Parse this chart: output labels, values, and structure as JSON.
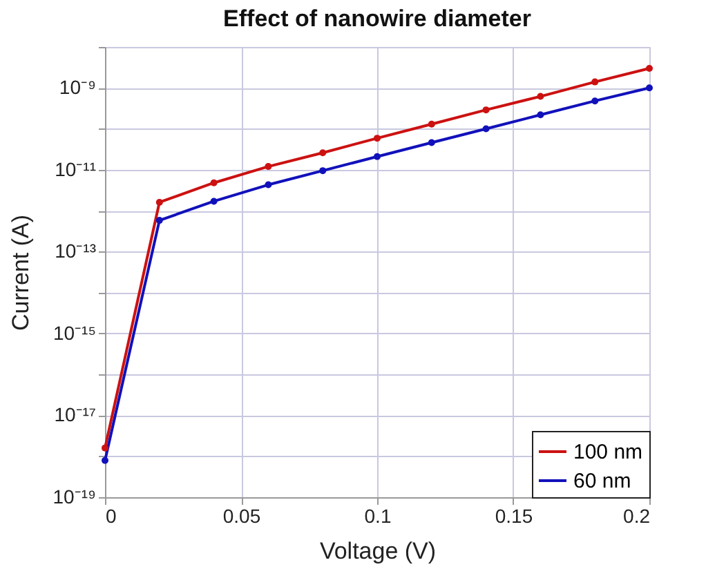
{
  "chart_data": {
    "type": "line",
    "title": "Effect of nanowire diameter",
    "xlabel": "Voltage (V)",
    "ylabel": "Current (A)",
    "x": [
      0,
      0.02,
      0.04,
      0.06,
      0.08,
      0.1,
      0.12,
      0.14,
      0.16,
      0.18,
      0.2
    ],
    "series": [
      {
        "name": "100 nm",
        "color": "#cc1111",
        "values": [
          1.6e-18,
          1.6e-12,
          4.8e-12,
          1.2e-11,
          2.6e-11,
          5.9e-11,
          1.3e-10,
          2.9e-10,
          6.2e-10,
          1.4e-09,
          3e-09
        ]
      },
      {
        "name": "60 nm",
        "color": "#1111bb",
        "values": [
          7.9e-19,
          5.8e-13,
          1.7e-12,
          4.3e-12,
          9.5e-12,
          2.1e-11,
          4.6e-11,
          1e-10,
          2.2e-10,
          4.8e-10,
          1e-09
        ]
      }
    ],
    "xlim": [
      0,
      0.2
    ],
    "xticks": [
      0,
      0.05,
      0.1,
      0.15,
      0.2
    ],
    "ylim": [
      1e-19,
      1e-08
    ],
    "yticks": [
      {
        "value": 1e-19,
        "label": "10⁻¹⁹"
      },
      {
        "value": 1e-18,
        "label": null
      },
      {
        "value": 1e-17,
        "label": "10⁻¹⁷"
      },
      {
        "value": 1e-16,
        "label": null
      },
      {
        "value": 1e-15,
        "label": "10⁻¹⁵"
      },
      {
        "value": 1e-14,
        "label": null
      },
      {
        "value": 1e-13,
        "label": "10⁻¹³"
      },
      {
        "value": 1e-12,
        "label": null
      },
      {
        "value": 1e-11,
        "label": "10⁻¹¹"
      },
      {
        "value": 1e-10,
        "label": null
      },
      {
        "value": 1e-09,
        "label": "10⁻⁹"
      },
      {
        "value": 1e-08,
        "label": null
      }
    ],
    "log": "y",
    "grid": true,
    "legend": "bottom right",
    "marker": "circle",
    "line_style": "solid"
  }
}
